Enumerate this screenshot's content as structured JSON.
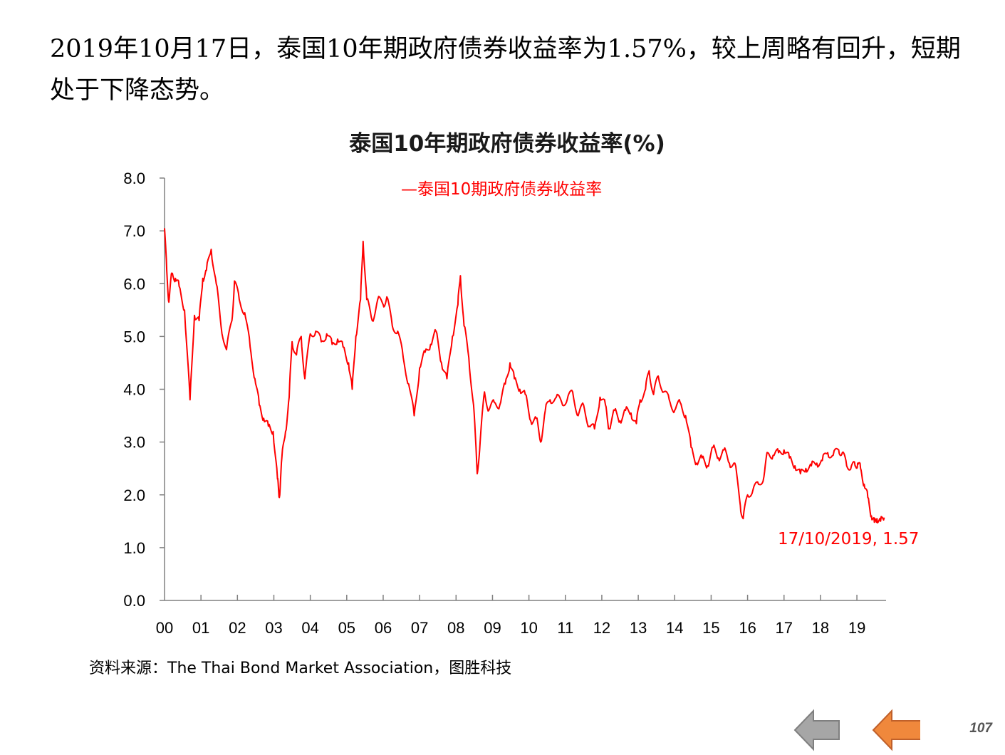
{
  "intro_text": "2019年10月17日，泰国10年期政府债券收益率为1.57%，较上周略有回升，短期处于下降态势。",
  "source_text": "资料来源：The Thai Bond Market Association，图胜科技",
  "page_number": "107",
  "nav": {
    "back": {
      "icon": "arrow-left-icon",
      "color": "#a6a6a6"
    },
    "next": {
      "icon": "arrow-left-icon",
      "color": "#f0883c"
    }
  },
  "chart_data": {
    "type": "line",
    "title": "泰国10年期政府债券收益率(%)",
    "series": [
      {
        "name": "泰国10期政府债券收益率",
        "color": "#ff0000",
        "points": [
          [
            2000.0,
            7.05
          ],
          [
            2000.06,
            6.25
          ],
          [
            2000.12,
            5.65
          ],
          [
            2000.2,
            6.2
          ],
          [
            2000.3,
            6.1
          ],
          [
            2000.4,
            5.95
          ],
          [
            2000.55,
            5.5
          ],
          [
            2000.7,
            3.8
          ],
          [
            2000.82,
            5.4
          ],
          [
            2000.95,
            5.3
          ],
          [
            2001.05,
            6.1
          ],
          [
            2001.15,
            6.25
          ],
          [
            2001.28,
            6.65
          ],
          [
            2001.42,
            6.0
          ],
          [
            2001.55,
            5.2
          ],
          [
            2001.7,
            4.75
          ],
          [
            2001.85,
            5.3
          ],
          [
            2001.92,
            6.05
          ],
          [
            2002.05,
            5.7
          ],
          [
            2002.2,
            5.45
          ],
          [
            2002.35,
            4.8
          ],
          [
            2002.48,
            4.2
          ],
          [
            2002.6,
            3.7
          ],
          [
            2002.72,
            3.45
          ],
          [
            2002.85,
            3.3
          ],
          [
            2002.98,
            3.2
          ],
          [
            2003.1,
            2.3
          ],
          [
            2003.15,
            1.95
          ],
          [
            2003.22,
            2.7
          ],
          [
            2003.32,
            3.2
          ],
          [
            2003.42,
            3.85
          ],
          [
            2003.5,
            4.9
          ],
          [
            2003.62,
            4.65
          ],
          [
            2003.75,
            5.0
          ],
          [
            2003.85,
            4.2
          ],
          [
            2004.0,
            5.05
          ],
          [
            2004.15,
            5.1
          ],
          [
            2004.3,
            4.9
          ],
          [
            2004.45,
            5.05
          ],
          [
            2004.6,
            4.85
          ],
          [
            2004.75,
            4.95
          ],
          [
            2004.9,
            4.8
          ],
          [
            2005.05,
            4.5
          ],
          [
            2005.15,
            4.0
          ],
          [
            2005.25,
            5.0
          ],
          [
            2005.38,
            5.7
          ],
          [
            2005.45,
            6.8
          ],
          [
            2005.55,
            5.7
          ],
          [
            2005.7,
            5.3
          ],
          [
            2005.85,
            5.7
          ],
          [
            2006.0,
            5.6
          ],
          [
            2006.1,
            5.75
          ],
          [
            2006.25,
            5.2
          ],
          [
            2006.4,
            5.1
          ],
          [
            2006.55,
            4.6
          ],
          [
            2006.7,
            4.1
          ],
          [
            2006.85,
            3.5
          ],
          [
            2007.0,
            4.4
          ],
          [
            2007.15,
            4.7
          ],
          [
            2007.3,
            4.85
          ],
          [
            2007.45,
            5.1
          ],
          [
            2007.6,
            4.5
          ],
          [
            2007.75,
            4.2
          ],
          [
            2007.9,
            5.0
          ],
          [
            2008.05,
            5.6
          ],
          [
            2008.12,
            6.15
          ],
          [
            2008.22,
            5.2
          ],
          [
            2008.35,
            4.6
          ],
          [
            2008.48,
            3.7
          ],
          [
            2008.58,
            2.4
          ],
          [
            2008.66,
            3.0
          ],
          [
            2008.78,
            3.95
          ],
          [
            2008.9,
            3.6
          ],
          [
            2009.05,
            3.75
          ],
          [
            2009.2,
            3.7
          ],
          [
            2009.35,
            4.1
          ],
          [
            2009.48,
            4.5
          ],
          [
            2009.6,
            4.2
          ],
          [
            2009.75,
            4.0
          ],
          [
            2009.9,
            3.9
          ],
          [
            2010.05,
            3.4
          ],
          [
            2010.2,
            3.45
          ],
          [
            2010.32,
            3.0
          ],
          [
            2010.45,
            3.6
          ],
          [
            2010.58,
            3.8
          ],
          [
            2010.75,
            3.85
          ],
          [
            2010.9,
            3.75
          ],
          [
            2011.05,
            3.8
          ],
          [
            2011.2,
            3.95
          ],
          [
            2011.35,
            3.5
          ],
          [
            2011.5,
            3.7
          ],
          [
            2011.65,
            3.3
          ],
          [
            2011.8,
            3.25
          ],
          [
            2011.95,
            3.85
          ],
          [
            2012.1,
            3.7
          ],
          [
            2012.2,
            3.25
          ],
          [
            2012.35,
            3.6
          ],
          [
            2012.5,
            3.4
          ],
          [
            2012.65,
            3.6
          ],
          [
            2012.8,
            3.55
          ],
          [
            2012.95,
            3.35
          ],
          [
            2013.05,
            3.8
          ],
          [
            2013.2,
            4.0
          ],
          [
            2013.3,
            4.35
          ],
          [
            2013.42,
            3.9
          ],
          [
            2013.55,
            4.25
          ],
          [
            2013.7,
            3.95
          ],
          [
            2013.85,
            3.8
          ],
          [
            2014.0,
            3.6
          ],
          [
            2014.15,
            3.75
          ],
          [
            2014.3,
            3.5
          ],
          [
            2014.45,
            2.9
          ],
          [
            2014.6,
            2.6
          ],
          [
            2014.75,
            2.7
          ],
          [
            2014.9,
            2.55
          ],
          [
            2015.05,
            2.9
          ],
          [
            2015.2,
            2.7
          ],
          [
            2015.35,
            2.85
          ],
          [
            2015.5,
            2.6
          ],
          [
            2015.65,
            2.6
          ],
          [
            2015.8,
            1.8
          ],
          [
            2015.88,
            1.55
          ],
          [
            2016.0,
            2.0
          ],
          [
            2016.15,
            2.1
          ],
          [
            2016.3,
            2.2
          ],
          [
            2016.45,
            2.35
          ],
          [
            2016.55,
            2.8
          ],
          [
            2016.7,
            2.75
          ],
          [
            2016.85,
            2.8
          ],
          [
            2017.0,
            2.85
          ],
          [
            2017.15,
            2.7
          ],
          [
            2017.3,
            2.55
          ],
          [
            2017.45,
            2.4
          ],
          [
            2017.6,
            2.5
          ],
          [
            2017.75,
            2.55
          ],
          [
            2017.9,
            2.6
          ],
          [
            2018.05,
            2.65
          ],
          [
            2018.2,
            2.8
          ],
          [
            2018.35,
            2.75
          ],
          [
            2018.5,
            2.85
          ],
          [
            2018.6,
            2.8
          ],
          [
            2018.72,
            2.55
          ],
          [
            2018.85,
            2.55
          ],
          [
            2018.95,
            2.55
          ],
          [
            2019.02,
            2.6
          ],
          [
            2019.1,
            2.5
          ],
          [
            2019.2,
            2.2
          ],
          [
            2019.3,
            1.95
          ],
          [
            2019.4,
            1.6
          ],
          [
            2019.48,
            1.48
          ],
          [
            2019.55,
            1.55
          ],
          [
            2019.65,
            1.5
          ],
          [
            2019.75,
            1.57
          ]
        ]
      }
    ],
    "x_tick_labels": [
      "00",
      "01",
      "02",
      "03",
      "04",
      "05",
      "06",
      "07",
      "08",
      "09",
      "10",
      "11",
      "12",
      "13",
      "14",
      "15",
      "16",
      "17",
      "18",
      "19"
    ],
    "y_tick_labels": [
      "0.0",
      "1.0",
      "2.0",
      "3.0",
      "4.0",
      "5.0",
      "6.0",
      "7.0",
      "8.0"
    ],
    "xlim": [
      2000,
      2019.8
    ],
    "ylim": [
      0,
      8
    ],
    "grid": false,
    "legend_position": "top-center",
    "legend_label": "—泰国10期政府债券收益率",
    "annotation": {
      "text": "17/10/2019, 1.57",
      "x": 2019.75,
      "y": 1.57,
      "color": "#ff0000"
    }
  }
}
